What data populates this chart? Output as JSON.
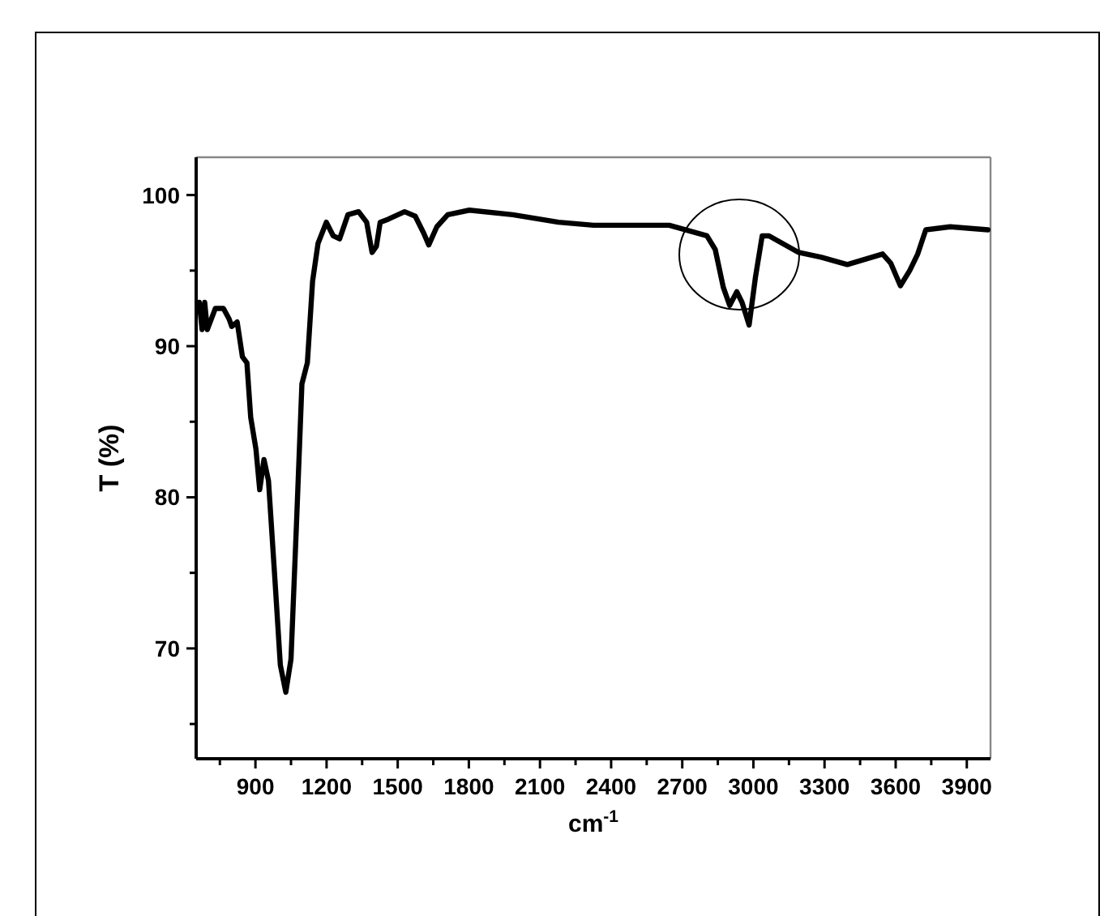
{
  "chart_data": {
    "type": "line",
    "xlabel": "cm$^{-1}$",
    "ylabel": "T (%)",
    "xlim": [
      650,
      4000
    ],
    "ylim": [
      62.7,
      102.5
    ],
    "xticks": [
      {
        "value": 750,
        "label": null
      },
      900,
      {
        "value": 1050,
        "label": null
      },
      1200,
      {
        "value": 1350,
        "label": null
      },
      1500,
      {
        "value": 1650,
        "label": null
      },
      1800,
      {
        "value": 1950,
        "label": null
      },
      2100,
      {
        "value": 2250,
        "label": null
      },
      2400,
      {
        "value": 2550,
        "label": null
      },
      2700,
      {
        "value": 2850,
        "label": null
      },
      3000,
      {
        "value": 3150,
        "label": null
      },
      3300,
      {
        "value": 3450,
        "label": null
      },
      3600,
      {
        "value": 3750,
        "label": null
      },
      3900
    ],
    "yticks": [
      {
        "value": 65,
        "label": null
      },
      70,
      {
        "value": 75,
        "label": null
      },
      80,
      {
        "value": 85,
        "label": null
      },
      90,
      {
        "value": 95,
        "label": null
      },
      100
    ],
    "grid": false,
    "marker": "none",
    "line_style": "solid",
    "series": [
      {
        "color": "#000000",
        "x": [
          663,
          675,
          686,
          697,
          731,
          765,
          789,
          800,
          823,
          845,
          864,
          880,
          902,
          918,
          936,
          955,
          982,
          1005,
          1028,
          1050,
          1073,
          1096,
          1119,
          1141,
          1164,
          1199,
          1228,
          1255,
          1290,
          1335,
          1369,
          1392,
          1410,
          1426,
          1460,
          1529,
          1574,
          1609,
          1631,
          1665,
          1711,
          1802,
          1985,
          2178,
          2326,
          2554,
          2645,
          2804,
          2839,
          2873,
          2900,
          2930,
          2952,
          2982,
          3009,
          3037,
          3066,
          3191,
          3283,
          3396,
          3545,
          3579,
          3620,
          3659,
          3693,
          3727,
          3830,
          3989
        ],
        "values": [
          92.9,
          91.1,
          92.9,
          91.1,
          92.5,
          92.5,
          91.8,
          91.3,
          91.6,
          89.3,
          88.9,
          85.3,
          83.2,
          80.5,
          82.5,
          81.1,
          74.6,
          68.9,
          67.1,
          69.3,
          78.2,
          87.5,
          88.9,
          94.3,
          96.8,
          98.2,
          97.3,
          97.1,
          98.7,
          98.9,
          98.2,
          96.2,
          96.6,
          98.2,
          98.4,
          98.9,
          98.6,
          97.5,
          96.7,
          97.9,
          98.7,
          99.0,
          98.7,
          98.2,
          98.0,
          98.0,
          98.0,
          97.3,
          96.4,
          93.9,
          92.7,
          93.6,
          92.9,
          91.4,
          94.6,
          97.3,
          97.3,
          96.2,
          95.9,
          95.4,
          96.1,
          95.5,
          94.0,
          95.0,
          96.1,
          97.7,
          97.9,
          97.7
        ]
      }
    ]
  }
}
